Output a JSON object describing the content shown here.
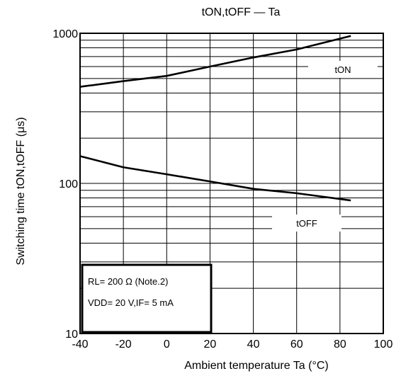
{
  "chart_data": {
    "type": "line",
    "title": "tON,tOFF — Ta",
    "xlabel": "Ambient temperature   Ta (°C)",
    "ylabel": "Switching time   tON,tOFF (μs)",
    "xlim": [
      -40,
      100
    ],
    "ylim": [
      10,
      1000
    ],
    "yscale": "log",
    "grid": true,
    "x_ticks": [
      "-40",
      "-20",
      "0",
      "20",
      "40",
      "60",
      "80",
      "100"
    ],
    "y_ticks": [
      "10",
      "100",
      "1000"
    ],
    "series": [
      {
        "name": "tON",
        "x": [
          -40,
          -20,
          0,
          20,
          40,
          60,
          85
        ],
        "y": [
          440,
          480,
          520,
          600,
          690,
          780,
          960
        ]
      },
      {
        "name": "tOFF",
        "x": [
          -40,
          -20,
          0,
          20,
          40,
          60,
          85
        ],
        "y": [
          152,
          128,
          115,
          103,
          92,
          86,
          77
        ]
      }
    ],
    "annotations": [
      "RL= 200 Ω (Note.2)",
      "VDD= 20 V,IF= 5 mA"
    ]
  }
}
